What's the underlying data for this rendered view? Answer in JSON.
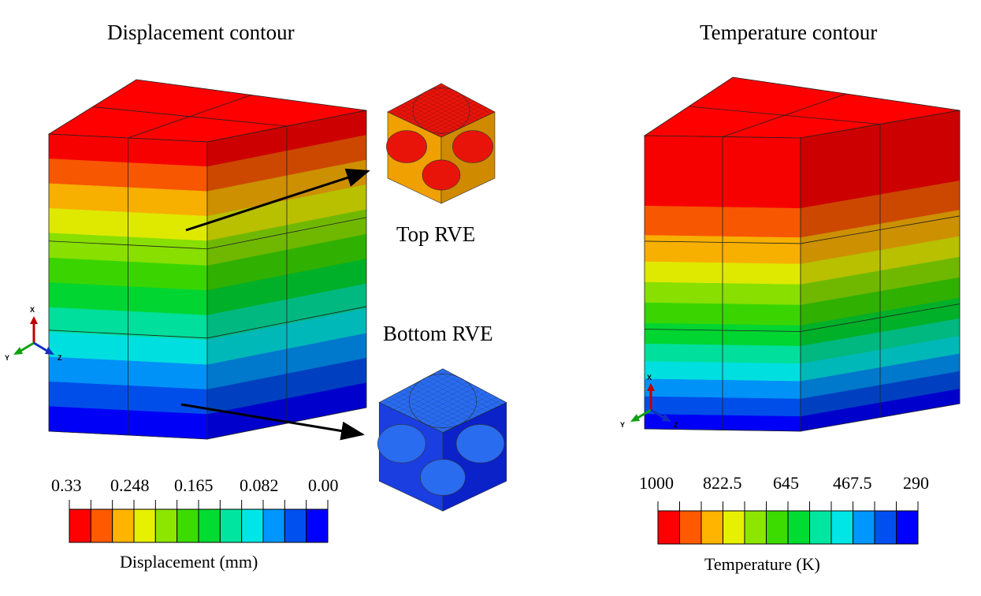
{
  "palette": [
    "#ff0000",
    "#ff5a00",
    "#ffb400",
    "#e6f000",
    "#8ce600",
    "#3cdc00",
    "#00dc32",
    "#00e6a0",
    "#00e6e6",
    "#0096ff",
    "#0050f0",
    "#0000ff"
  ],
  "left_panel": {
    "title": "Displacement contour",
    "top_rve_label": "Top RVE",
    "bottom_rve_label": "Bottom RVE",
    "colorbar": {
      "label": "Displacement (mm)",
      "ticks": [
        "0.33",
        "0.248",
        "0.165",
        "0.082",
        "0.00"
      ]
    },
    "triad": {
      "x": "X",
      "y": "Y",
      "z": "Z"
    }
  },
  "right_panel": {
    "title": "Temperature contour",
    "colorbar": {
      "label": "Temperature (K)",
      "ticks": [
        "1000",
        "822.5",
        "645",
        "467.5",
        "290"
      ]
    },
    "triad": {
      "x": "X",
      "y": "Y",
      "z": "Z"
    }
  }
}
